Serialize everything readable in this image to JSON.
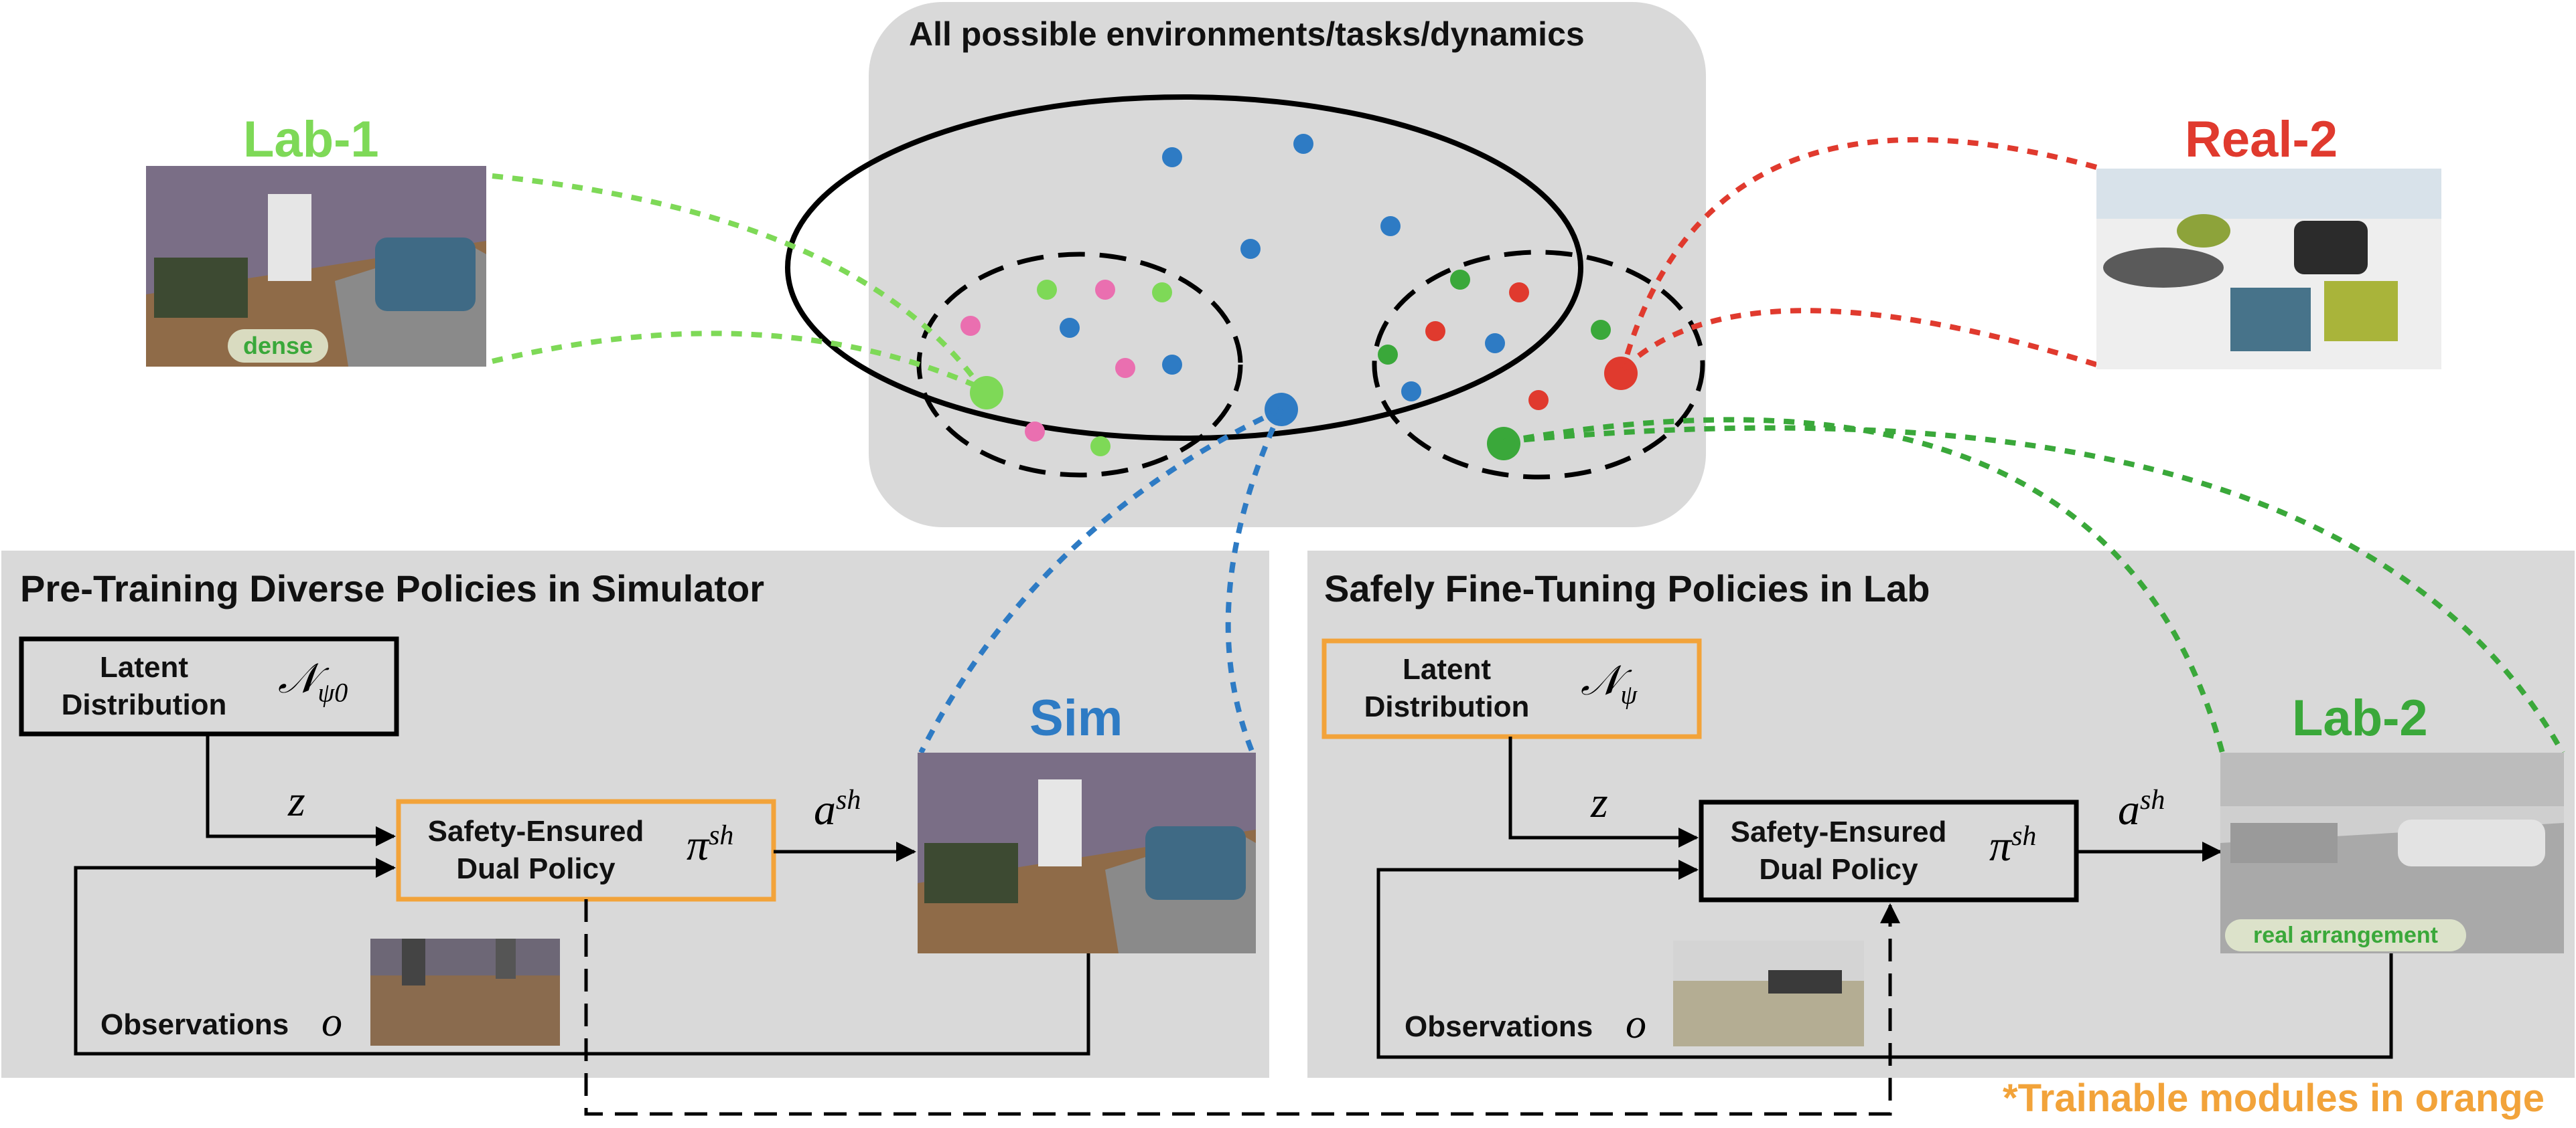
{
  "colors": {
    "green": "#7ed957",
    "dark_green": "#3aa83a",
    "red": "#e03a2e",
    "blue": "#2e7bc4",
    "pink": "#ea6fb0",
    "orange": "#f2a33a",
    "panel_gray": "#d9d9d9"
  },
  "top": {
    "title": "All possible environments/tasks/dynamics"
  },
  "thumbnails": {
    "lab1": {
      "title": "Lab-1",
      "badge": "dense"
    },
    "real2": {
      "title": "Real-2"
    },
    "sim": {
      "title": "Sim"
    },
    "lab2": {
      "title": "Lab-2",
      "badge": "real arrangement"
    }
  },
  "left_panel": {
    "title": "Pre-Training Diverse Policies in Simulator",
    "latent_line1": "Latent",
    "latent_line2": "Distribution",
    "latent_symbol": "𝒩",
    "latent_sub": "ψ0",
    "z_label": "z",
    "policy_line1": "Safety-Ensured",
    "policy_line2": "Dual Policy",
    "pi_symbol": "π",
    "pi_sup": "sh",
    "a_symbol": "a",
    "a_sup": "sh",
    "obs_label": "Observations",
    "obs_symbol": "o"
  },
  "right_panel": {
    "title": "Safely Fine-Tuning Policies in Lab",
    "latent_line1": "Latent",
    "latent_line2": "Distribution",
    "latent_symbol": "𝒩",
    "latent_sub": "ψ",
    "z_label": "z",
    "policy_line1": "Safety-Ensured",
    "policy_line2": "Dual Policy",
    "pi_symbol": "π",
    "pi_sup": "sh",
    "a_symbol": "a",
    "a_sup": "sh",
    "obs_label": "Observations",
    "obs_symbol": "o"
  },
  "footnote": "*Trainable modules in orange"
}
